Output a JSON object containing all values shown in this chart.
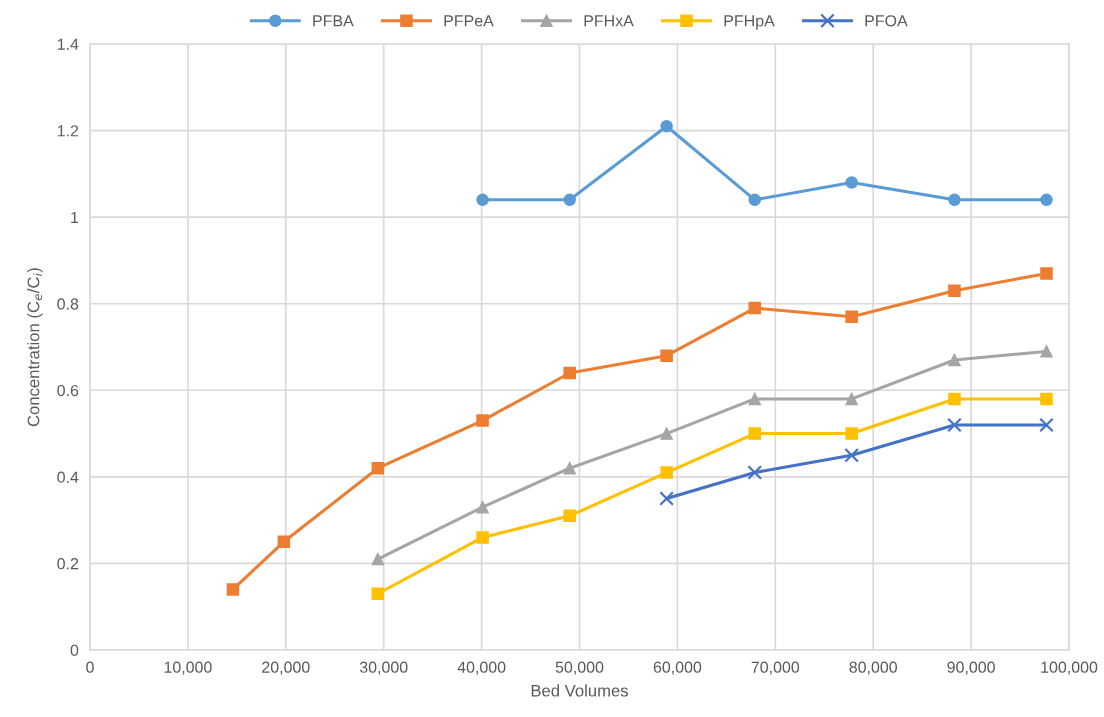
{
  "chart_data": {
    "type": "line",
    "xlabel": "Bed Volumes",
    "ylabel": "Concentration (C$_{e}$/C$_{i}$)",
    "xlim": [
      0,
      100000
    ],
    "xticks": [
      0,
      {
        "value": 10000,
        "label": "10,000"
      },
      {
        "value": 20000,
        "label": "20,000"
      },
      {
        "value": 30000,
        "label": "30,000"
      },
      {
        "value": 40000,
        "label": "40,000"
      },
      {
        "value": 50000,
        "label": "50,000"
      },
      {
        "value": 60000,
        "label": "60,000"
      },
      {
        "value": 70000,
        "label": "70,000"
      },
      {
        "value": 80000,
        "label": "80,000"
      },
      {
        "value": 90000,
        "label": "90,000"
      },
      {
        "value": 100000,
        "label": "100,000"
      }
    ],
    "ylim": [
      0,
      1.4
    ],
    "yticks": [
      0,
      0.2,
      0.4,
      0.6,
      0.8,
      1,
      1.2,
      1.4
    ],
    "grid": true,
    "legend": "top",
    "line_style": "solid",
    "series": [
      {
        "name": "PFBA",
        "color": "#5b9bd5",
        "marker": "circle",
        "x": [
          40100,
          49000,
          58900,
          67900,
          77800,
          88300,
          97700
        ],
        "values": [
          1.04,
          1.04,
          1.21,
          1.04,
          1.08,
          1.04,
          1.04
        ]
      },
      {
        "name": "PFPeA",
        "color": "#ed7d31",
        "marker": "square",
        "x": [
          14600,
          19800,
          29400,
          40100,
          49000,
          58900,
          67900,
          77800,
          88300,
          97700
        ],
        "values": [
          0.14,
          0.25,
          0.42,
          0.53,
          0.64,
          0.68,
          0.79,
          0.77,
          0.83,
          0.87
        ]
      },
      {
        "name": "PFHxA",
        "color": "#a5a5a5",
        "marker": "triangle",
        "x": [
          29400,
          40100,
          49000,
          58900,
          67900,
          77800,
          88300,
          97700
        ],
        "values": [
          0.21,
          0.33,
          0.42,
          0.5,
          0.58,
          0.58,
          0.67,
          0.69
        ]
      },
      {
        "name": "PFHpA",
        "color": "#ffc000",
        "marker": "square",
        "x": [
          29400,
          40100,
          49000,
          58900,
          67900,
          77800,
          88300,
          97700
        ],
        "values": [
          0.13,
          0.26,
          0.31,
          0.41,
          0.5,
          0.5,
          0.58,
          0.58
        ]
      },
      {
        "name": "PFOA",
        "color": "#4472c4",
        "marker": "cross",
        "x": [
          58900,
          67900,
          77800,
          88300,
          97700
        ],
        "values": [
          0.35,
          0.41,
          0.45,
          0.52,
          0.52
        ]
      }
    ]
  }
}
